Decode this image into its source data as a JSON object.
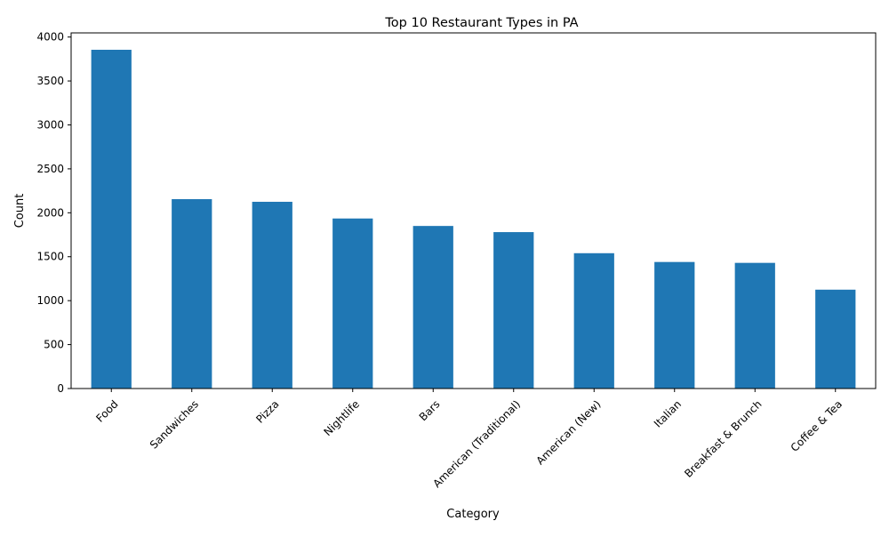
{
  "chart_data": {
    "type": "bar",
    "title": "Top 10 Restaurant Types in PA",
    "xlabel": "Category",
    "ylabel": "Count",
    "categories": [
      "Food",
      "Sandwiches",
      "Pizza",
      "Nightlife",
      "Bars",
      "American (Traditional)",
      "American (New)",
      "Italian",
      "Breakfast & Brunch",
      "Coffee & Tea"
    ],
    "values": [
      3855,
      2155,
      2125,
      1935,
      1850,
      1780,
      1540,
      1440,
      1430,
      1125
    ],
    "ylim": [
      0,
      4047
    ],
    "yticks": [
      0,
      500,
      1000,
      1500,
      2000,
      2500,
      3000,
      3500,
      4000
    ],
    "bar_color": "#1f77b4",
    "grid": false,
    "legend": "none",
    "x_tick_rotation_deg": 45
  }
}
